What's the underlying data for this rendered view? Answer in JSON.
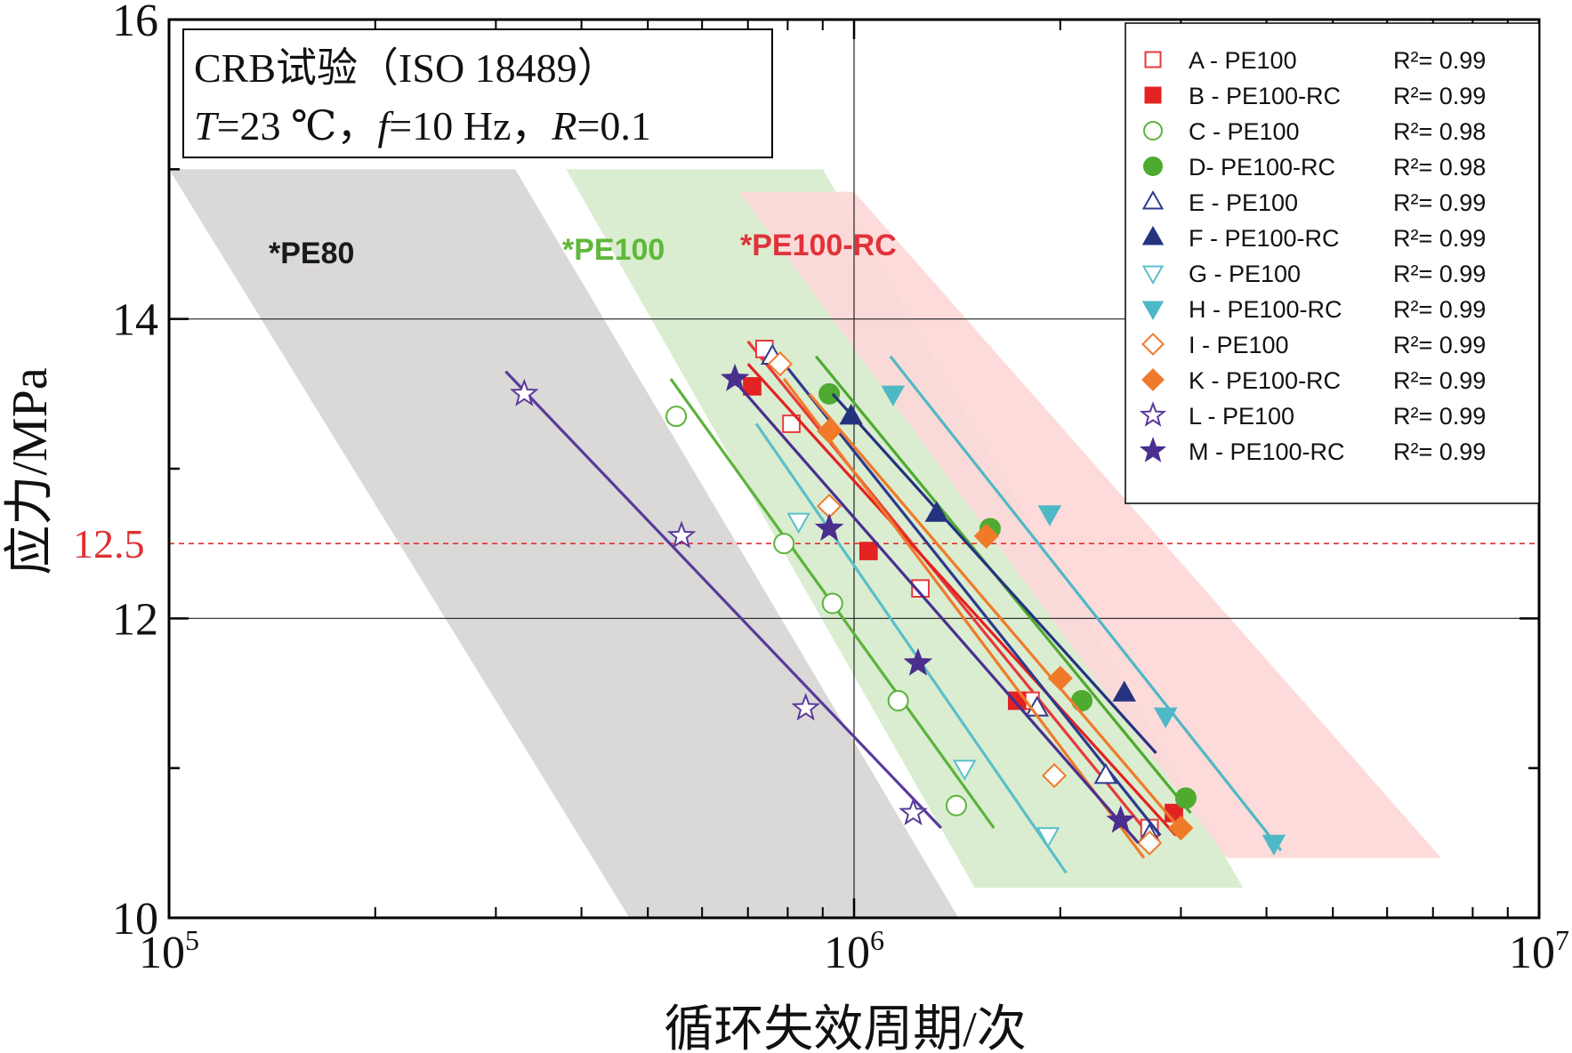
{
  "chart_data": {
    "type": "scatter",
    "xscale": "log",
    "xlim": [
      100000,
      10000000
    ],
    "ylim": [
      10,
      16
    ],
    "grid": "major x at 10^6; major y at 12 and 14",
    "xlabel": "循环失效周期/次",
    "ylabel": "应力/MPa",
    "x_ticks": [
      {
        "base": "10",
        "exp": "5"
      },
      {
        "base": "10",
        "exp": "6"
      },
      {
        "base": "10",
        "exp": "7"
      }
    ],
    "y_ticks": [
      "10",
      "12",
      "14",
      "16"
    ],
    "info_box": {
      "line1": "CRB试验（ISO 18489）",
      "line2_T": "T",
      "line2_Tval": "=23 ℃，",
      "line2_f": "f",
      "line2_fval": "=10 Hz，",
      "line2_R": "R",
      "line2_Rval": "=0.1"
    },
    "reference_line": {
      "y": 12.5,
      "label": "12.5",
      "color": "#e03030"
    },
    "bands": [
      {
        "label": "*PE80",
        "color": "#1a1a1a",
        "fill": "#d9d6d6",
        "polygon": [
          [
            100000,
            15.0
          ],
          [
            320000,
            15.0
          ],
          [
            1420000,
            10.0
          ],
          [
            470000,
            10.0
          ]
        ]
      },
      {
        "label": "*PE100",
        "color": "#5fb83a",
        "fill": "#d8eccd",
        "polygon": [
          [
            380000,
            15.0
          ],
          [
            900000,
            15.0
          ],
          [
            3700000,
            10.2
          ],
          [
            1500000,
            10.2
          ]
        ]
      },
      {
        "label": "*PE100-RC",
        "color": "#e0323a",
        "fill": "#fcd9d8",
        "polygon": [
          [
            680000,
            14.85
          ],
          [
            1000000,
            14.85
          ],
          [
            7200000,
            10.4
          ],
          [
            3500000,
            10.4
          ]
        ]
      }
    ],
    "series": [
      {
        "name": "A - PE100",
        "r2": "R²= 0.99",
        "color": "#e63a3a",
        "marker": "square",
        "filled": false,
        "points": [
          [
            740000,
            13.8
          ],
          [
            810000,
            13.3
          ],
          [
            1250000,
            12.2
          ],
          [
            1810000,
            11.45
          ],
          [
            2700000,
            10.6
          ]
        ],
        "line": [
          [
            700000,
            13.85
          ],
          [
            2700000,
            10.55
          ]
        ]
      },
      {
        "name": "B - PE100-RC",
        "r2": "R²= 0.99",
        "color": "#e32222",
        "marker": "square",
        "filled": true,
        "points": [
          [
            710000,
            13.55
          ],
          [
            1050000,
            12.45
          ],
          [
            1730000,
            11.45
          ],
          [
            2930000,
            10.7
          ]
        ],
        "line": [
          [
            700000,
            13.7
          ],
          [
            2950000,
            10.55
          ]
        ]
      },
      {
        "name": "C - PE100",
        "r2": "R²= 0.98",
        "color": "#5cb33b",
        "marker": "circle",
        "filled": false,
        "points": [
          [
            550000,
            13.35
          ],
          [
            790000,
            12.5
          ],
          [
            930000,
            12.1
          ],
          [
            1160000,
            11.45
          ],
          [
            1410000,
            10.75
          ]
        ],
        "line": [
          [
            540000,
            13.6
          ],
          [
            1600000,
            10.6
          ]
        ]
      },
      {
        "name": "D- PE100-RC",
        "r2": "R²= 0.98",
        "color": "#4faa30",
        "marker": "circle",
        "filled": true,
        "points": [
          [
            920000,
            13.5
          ],
          [
            1580000,
            12.6
          ],
          [
            2150000,
            11.45
          ],
          [
            3050000,
            10.8
          ]
        ],
        "line": [
          [
            880000,
            13.75
          ],
          [
            3100000,
            10.7
          ]
        ]
      },
      {
        "name": "E - PE100",
        "r2": "R²= 0.99",
        "color": "#2e3a8c",
        "marker": "triangle-up",
        "filled": false,
        "points": [
          [
            760000,
            13.75
          ],
          [
            1850000,
            11.4
          ],
          [
            2330000,
            10.95
          ],
          [
            2700000,
            10.55
          ]
        ],
        "line": [
          [
            760000,
            13.8
          ],
          [
            2800000,
            10.55
          ]
        ]
      },
      {
        "name": "F - PE100-RC",
        "r2": "R²= 0.99",
        "color": "#25337f",
        "marker": "triangle-up",
        "filled": true,
        "points": [
          [
            990000,
            13.35
          ],
          [
            1320000,
            12.7
          ],
          [
            2480000,
            11.5
          ]
        ],
        "line": [
          [
            930000,
            13.5
          ],
          [
            2760000,
            11.1
          ]
        ]
      },
      {
        "name": "G - PE100",
        "r2": "R²= 0.99",
        "color": "#5bbfcb",
        "marker": "triangle-down",
        "filled": false,
        "points": [
          [
            830000,
            12.65
          ],
          [
            1450000,
            11.0
          ],
          [
            1920000,
            10.55
          ]
        ],
        "line": [
          [
            720000,
            13.3
          ],
          [
            2040000,
            10.3
          ]
        ]
      },
      {
        "name": "H - PE100-RC",
        "r2": "R²= 0.99",
        "color": "#4fb8c6",
        "marker": "triangle-down",
        "filled": true,
        "points": [
          [
            1140000,
            13.5
          ],
          [
            1930000,
            12.7
          ],
          [
            2850000,
            11.35
          ],
          [
            4100000,
            10.5
          ]
        ],
        "line": [
          [
            1130000,
            13.75
          ],
          [
            4200000,
            10.45
          ]
        ]
      },
      {
        "name": "I  - PE100",
        "r2": "R²= 0.99",
        "color": "#f07a2a",
        "marker": "diamond",
        "filled": false,
        "points": [
          [
            780000,
            13.7
          ],
          [
            920000,
            12.75
          ],
          [
            1960000,
            10.95
          ],
          [
            2700000,
            10.5
          ]
        ],
        "line": [
          [
            790000,
            13.6
          ],
          [
            2650000,
            10.4
          ]
        ]
      },
      {
        "name": "K - PE100-RC",
        "r2": "R²= 0.99",
        "color": "#f07a2a",
        "marker": "diamond",
        "filled": true,
        "points": [
          [
            920000,
            13.25
          ],
          [
            1560000,
            12.55
          ],
          [
            2000000,
            11.6
          ],
          [
            3000000,
            10.6
          ]
        ],
        "line": [
          [
            860000,
            13.5
          ],
          [
            3050000,
            10.55
          ]
        ]
      },
      {
        "name": "L - PE100",
        "r2": "R²= 0.99",
        "color": "#5a3a9a",
        "marker": "star",
        "filled": false,
        "points": [
          [
            330000,
            13.5
          ],
          [
            560000,
            12.55
          ],
          [
            850000,
            11.4
          ],
          [
            1220000,
            10.7
          ]
        ],
        "line": [
          [
            310000,
            13.65
          ],
          [
            1340000,
            10.6
          ]
        ]
      },
      {
        "name": "M - PE100-RC",
        "r2": "R²= 0.99",
        "color": "#4a2f8f",
        "marker": "star",
        "filled": true,
        "points": [
          [
            670000,
            13.6
          ],
          [
            920000,
            12.6
          ],
          [
            1240000,
            11.7
          ],
          [
            2450000,
            10.65
          ]
        ],
        "line": [
          [
            680000,
            13.55
          ],
          [
            2600000,
            10.5
          ]
        ]
      }
    ],
    "legend_position": "top-right"
  }
}
